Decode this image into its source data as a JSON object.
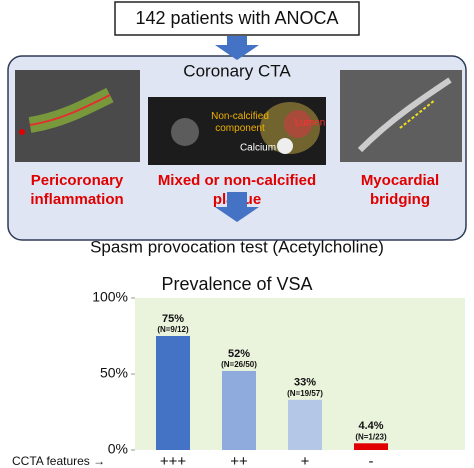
{
  "header": {
    "title": "142 patients with ANOCA"
  },
  "panel": {
    "title": "Coronary CTA",
    "captions": [
      [
        "Pericoronary",
        "inflammation"
      ],
      [
        "Mixed or non-calcified",
        "plaque"
      ],
      [
        "Myocardial",
        "bridging"
      ]
    ],
    "image_labels": {
      "component": [
        "Non-calcified",
        "component"
      ],
      "lumen": "Lumen",
      "calcium": "Calcium"
    }
  },
  "test": "Spasm provocation test (Acetylcholine)",
  "chart_data": {
    "type": "bar",
    "title": "Prevalence of VSA",
    "x_label": "CCTA features →",
    "categories": [
      "+++",
      "++",
      "+",
      "-"
    ],
    "values": [
      75,
      52,
      33,
      4.4
    ],
    "value_labels": [
      "75%",
      "52%",
      "33%",
      "4.4%"
    ],
    "n_labels": [
      "(N=9/12)",
      "(N=26/50)",
      "(N=19/57)",
      "(N=1/23)"
    ],
    "colors": [
      "#4472c4",
      "#8faadc",
      "#b4c7e7",
      "#e00000"
    ],
    "ylim": [
      0,
      100
    ],
    "yticks": [
      {
        "value": 0,
        "label": "0%"
      },
      {
        "value": 50,
        "label": "50%"
      },
      {
        "value": 100,
        "label": "100%"
      }
    ]
  }
}
